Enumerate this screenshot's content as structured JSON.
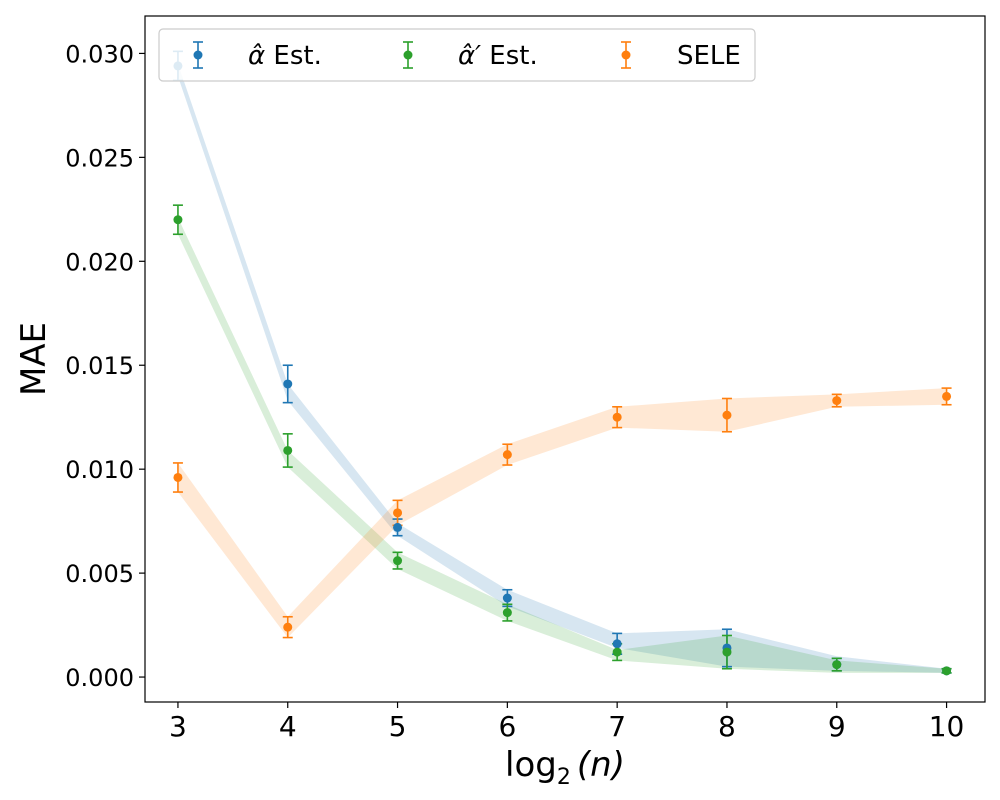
{
  "chart_data": {
    "type": "line",
    "xlabel_main": "log",
    "xlabel_sub": "2",
    "xlabel_arg": "(n)",
    "ylabel": "MAE",
    "x": [
      3,
      4,
      5,
      6,
      7,
      8,
      9,
      10
    ],
    "x_ticks": [
      "3",
      "4",
      "5",
      "6",
      "7",
      "8",
      "9",
      "10"
    ],
    "xlim": [
      2.7,
      10.35
    ],
    "ylim": [
      -0.0012,
      0.0318
    ],
    "y_ticks": [
      "0.000",
      "0.005",
      "0.010",
      "0.015",
      "0.020",
      "0.025",
      "0.030"
    ],
    "y_tick_values": [
      0.0,
      0.005,
      0.01,
      0.015,
      0.02,
      0.025,
      0.03
    ],
    "grid": false,
    "legend_position": "top",
    "series": [
      {
        "name_base": "α̂",
        "name_suffix": "Est.",
        "color": "#1f77b4",
        "values": [
          0.0294,
          0.0141,
          0.0072,
          0.0038,
          0.0016,
          0.0014,
          0.0006,
          0.0003
        ],
        "err": [
          0.0007,
          0.0009,
          0.0004,
          0.0004,
          0.0005,
          0.0009,
          0.0003,
          0.0001
        ],
        "band_upper": [
          0.0295,
          0.0141,
          0.0074,
          0.0042,
          0.0021,
          0.0023,
          0.001,
          0.0004
        ],
        "band_lower": [
          0.0289,
          0.0133,
          0.0068,
          0.0034,
          0.0014,
          0.0005,
          0.0003,
          0.0002
        ]
      },
      {
        "name_base": "α̂′",
        "name_suffix": "Est.",
        "color": "#2ca02c",
        "values": [
          0.022,
          0.0109,
          0.0056,
          0.0031,
          0.0012,
          0.0012,
          0.0006,
          0.0003
        ],
        "err": [
          0.0007,
          0.0008,
          0.0004,
          0.0004,
          0.0004,
          0.0008,
          0.0003,
          0.0001
        ],
        "band_upper": [
          0.0221,
          0.0109,
          0.006,
          0.0035,
          0.0013,
          0.002,
          0.0008,
          0.0004
        ],
        "band_lower": [
          0.0213,
          0.0101,
          0.0052,
          0.0027,
          0.0008,
          0.0004,
          0.0002,
          0.0002
        ]
      },
      {
        "name_base": "SELE",
        "name_suffix": "",
        "color": "#ff7f0e",
        "values": [
          0.0096,
          0.0024,
          0.0079,
          0.0107,
          0.0125,
          0.0126,
          0.0133,
          0.0135
        ],
        "err": [
          0.0007,
          0.0005,
          0.0006,
          0.0005,
          0.0005,
          0.0008,
          0.0003,
          0.0004
        ],
        "band_upper": [
          0.0103,
          0.0029,
          0.0085,
          0.0112,
          0.013,
          0.0134,
          0.0136,
          0.0139
        ],
        "band_lower": [
          0.0089,
          0.0019,
          0.0073,
          0.0102,
          0.012,
          0.0118,
          0.013,
          0.0131
        ]
      }
    ]
  }
}
